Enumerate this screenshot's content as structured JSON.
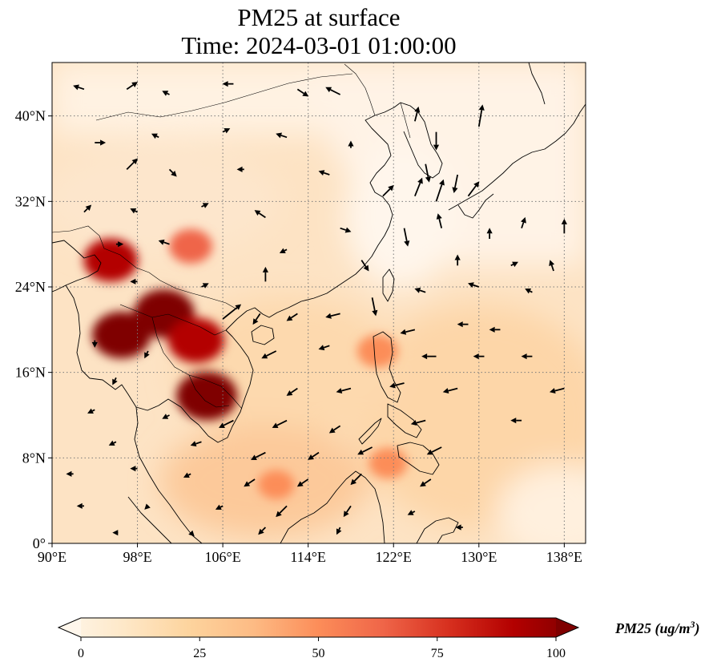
{
  "title": {
    "line1": "PM25 at surface",
    "line2": "Time: 2024-03-01 01:00:00"
  },
  "map": {
    "lon_range": [
      90,
      140
    ],
    "lat_range": [
      0,
      45
    ],
    "lon_ticks": [
      90,
      98,
      106,
      114,
      122,
      130,
      138
    ],
    "lon_tick_labels": [
      "90°E",
      "98°E",
      "106°E",
      "114°E",
      "122°E",
      "130°E",
      "138°E"
    ],
    "lat_ticks": [
      0,
      8,
      16,
      24,
      32,
      40
    ],
    "lat_tick_labels": [
      "0°",
      "8°N",
      "16°N",
      "24°N",
      "32°N",
      "40°N"
    ],
    "gridlines": true,
    "colormap": "OrRd",
    "hotspots": [
      {
        "lon": 95.5,
        "lat": 26.5,
        "value": 85
      },
      {
        "lon": 100.5,
        "lat": 21.5,
        "value": 100
      },
      {
        "lon": 96.5,
        "lat": 19.5,
        "value": 95
      },
      {
        "lon": 103.5,
        "lat": 19.0,
        "value": 90
      },
      {
        "lon": 104.5,
        "lat": 13.8,
        "value": 100
      },
      {
        "lon": 103.0,
        "lat": 27.8,
        "value": 60
      },
      {
        "lon": 120.5,
        "lat": 18.0,
        "value": 55
      },
      {
        "lon": 121.5,
        "lat": 7.5,
        "value": 50
      },
      {
        "lon": 111.0,
        "lat": 5.5,
        "value": 45
      }
    ],
    "wind_vectors": [
      {
        "lon": 93,
        "lat": 42.5,
        "u": -3,
        "v": 1
      },
      {
        "lon": 97,
        "lat": 42.5,
        "u": 3,
        "v": 2
      },
      {
        "lon": 101,
        "lat": 42,
        "u": -2,
        "v": 1
      },
      {
        "lon": 107,
        "lat": 43,
        "u": -3,
        "v": 0
      },
      {
        "lon": 113,
        "lat": 42.5,
        "u": 3,
        "v": -2
      },
      {
        "lon": 117,
        "lat": 42,
        "u": -4,
        "v": 2
      },
      {
        "lon": 124,
        "lat": 39.5,
        "u": 1,
        "v": 4
      },
      {
        "lon": 126,
        "lat": 38.5,
        "u": 0,
        "v": -5
      },
      {
        "lon": 130,
        "lat": 39,
        "u": 1,
        "v": 6
      },
      {
        "lon": 94,
        "lat": 37.5,
        "u": 3,
        "v": 0
      },
      {
        "lon": 100,
        "lat": 38,
        "u": -2,
        "v": 1
      },
      {
        "lon": 106,
        "lat": 38.5,
        "u": 2,
        "v": 1
      },
      {
        "lon": 112,
        "lat": 38,
        "u": -3,
        "v": 1
      },
      {
        "lon": 118,
        "lat": 37,
        "u": 0,
        "v": 2
      },
      {
        "lon": 125,
        "lat": 35.5,
        "u": 1,
        "v": -5
      },
      {
        "lon": 128,
        "lat": 34.5,
        "u": -1,
        "v": -5
      },
      {
        "lon": 97,
        "lat": 35,
        "u": 3,
        "v": 3
      },
      {
        "lon": 101,
        "lat": 35,
        "u": 2,
        "v": -2
      },
      {
        "lon": 108,
        "lat": 35,
        "u": -2,
        "v": 0
      },
      {
        "lon": 116,
        "lat": 34.5,
        "u": -3,
        "v": 1
      },
      {
        "lon": 121,
        "lat": 32.5,
        "u": 3,
        "v": 3
      },
      {
        "lon": 124,
        "lat": 32.5,
        "u": 2,
        "v": 5
      },
      {
        "lon": 126,
        "lat": 32,
        "u": 2,
        "v": 6
      },
      {
        "lon": 129,
        "lat": 32.5,
        "u": 3,
        "v": 4
      },
      {
        "lon": 93,
        "lat": 31,
        "u": 2,
        "v": 2
      },
      {
        "lon": 98,
        "lat": 31,
        "u": -2,
        "v": 1
      },
      {
        "lon": 104,
        "lat": 31.5,
        "u": 2,
        "v": 1
      },
      {
        "lon": 110,
        "lat": 30.5,
        "u": -3,
        "v": 2
      },
      {
        "lon": 117,
        "lat": 29.5,
        "u": 3,
        "v": -1
      },
      {
        "lon": 123,
        "lat": 29.5,
        "u": 1,
        "v": -5
      },
      {
        "lon": 126.5,
        "lat": 29.5,
        "u": -1,
        "v": 4
      },
      {
        "lon": 131,
        "lat": 28.5,
        "u": 0,
        "v": 3
      },
      {
        "lon": 134,
        "lat": 29.5,
        "u": 1,
        "v": 3
      },
      {
        "lon": 138,
        "lat": 29,
        "u": 0,
        "v": 4
      },
      {
        "lon": 96,
        "lat": 28,
        "u": 2,
        "v": 0
      },
      {
        "lon": 101,
        "lat": 28,
        "u": -3,
        "v": 1
      },
      {
        "lon": 112,
        "lat": 27.5,
        "u": -2,
        "v": -1
      },
      {
        "lon": 119,
        "lat": 26.5,
        "u": 2,
        "v": -3
      },
      {
        "lon": 128,
        "lat": 26,
        "u": 0,
        "v": 3
      },
      {
        "lon": 133,
        "lat": 26,
        "u": 2,
        "v": 1
      },
      {
        "lon": 137,
        "lat": 25.5,
        "u": -1,
        "v": 3
      },
      {
        "lon": 98,
        "lat": 24.5,
        "u": -2,
        "v": 0
      },
      {
        "lon": 104,
        "lat": 24,
        "u": 2,
        "v": 1
      },
      {
        "lon": 110,
        "lat": 24.5,
        "u": 0,
        "v": 4
      },
      {
        "lon": 120,
        "lat": 23,
        "u": 1,
        "v": -5
      },
      {
        "lon": 125,
        "lat": 23.5,
        "u": -3,
        "v": 1
      },
      {
        "lon": 130,
        "lat": 24,
        "u": -3,
        "v": 1
      },
      {
        "lon": 135,
        "lat": 23.5,
        "u": -2,
        "v": 1
      },
      {
        "lon": 106,
        "lat": 21,
        "u": 5,
        "v": 4
      },
      {
        "lon": 109.5,
        "lat": 21.5,
        "u": -2,
        "v": -3
      },
      {
        "lon": 113,
        "lat": 21.5,
        "u": -3,
        "v": -2
      },
      {
        "lon": 117,
        "lat": 21.5,
        "u": -4,
        "v": -1
      },
      {
        "lon": 124,
        "lat": 20,
        "u": -4,
        "v": -1
      },
      {
        "lon": 129,
        "lat": 20.5,
        "u": -3,
        "v": 0
      },
      {
        "lon": 132,
        "lat": 20,
        "u": -3,
        "v": 0
      },
      {
        "lon": 94,
        "lat": 19,
        "u": 0,
        "v": -2
      },
      {
        "lon": 99,
        "lat": 18,
        "u": -1,
        "v": -2
      },
      {
        "lon": 111,
        "lat": 18,
        "u": -4,
        "v": -2
      },
      {
        "lon": 116,
        "lat": 18.5,
        "u": -3,
        "v": -1
      },
      {
        "lon": 126,
        "lat": 17.5,
        "u": -4,
        "v": 0
      },
      {
        "lon": 130.5,
        "lat": 17.5,
        "u": -3,
        "v": 0
      },
      {
        "lon": 135,
        "lat": 17.5,
        "u": -3,
        "v": 0
      },
      {
        "lon": 96,
        "lat": 15.5,
        "u": -1,
        "v": -2
      },
      {
        "lon": 113,
        "lat": 14.5,
        "u": -3,
        "v": -2
      },
      {
        "lon": 118,
        "lat": 14.5,
        "u": -4,
        "v": -1
      },
      {
        "lon": 123,
        "lat": 15,
        "u": -4,
        "v": -1
      },
      {
        "lon": 128,
        "lat": 14.5,
        "u": -4,
        "v": -1
      },
      {
        "lon": 138,
        "lat": 14.5,
        "u": -4,
        "v": -1
      },
      {
        "lon": 94,
        "lat": 12.5,
        "u": -2,
        "v": -1
      },
      {
        "lon": 101,
        "lat": 12,
        "u": -2,
        "v": -1
      },
      {
        "lon": 107,
        "lat": 11.5,
        "u": -4,
        "v": -2
      },
      {
        "lon": 112,
        "lat": 11.5,
        "u": -4,
        "v": -2
      },
      {
        "lon": 117,
        "lat": 11,
        "u": -3,
        "v": -2
      },
      {
        "lon": 125,
        "lat": 11.5,
        "u": -4,
        "v": -1
      },
      {
        "lon": 134,
        "lat": 11.5,
        "u": -3,
        "v": 0
      },
      {
        "lon": 96,
        "lat": 9.5,
        "u": -2,
        "v": -1
      },
      {
        "lon": 104,
        "lat": 9.5,
        "u": -3,
        "v": -1
      },
      {
        "lon": 110,
        "lat": 8.5,
        "u": -4,
        "v": -2
      },
      {
        "lon": 115,
        "lat": 8.5,
        "u": -3,
        "v": -2
      },
      {
        "lon": 120,
        "lat": 9,
        "u": -4,
        "v": -2
      },
      {
        "lon": 126.5,
        "lat": 9,
        "u": -4,
        "v": -2
      },
      {
        "lon": 92,
        "lat": 6.5,
        "u": -2,
        "v": 0
      },
      {
        "lon": 98,
        "lat": 7,
        "u": -2,
        "v": 0
      },
      {
        "lon": 103,
        "lat": 6.5,
        "u": -2,
        "v": -1
      },
      {
        "lon": 109,
        "lat": 6,
        "u": -3,
        "v": -2
      },
      {
        "lon": 114,
        "lat": 6,
        "u": -3,
        "v": -2
      },
      {
        "lon": 119,
        "lat": 6.5,
        "u": -3,
        "v": -3
      },
      {
        "lon": 125.5,
        "lat": 6,
        "u": -3,
        "v": -2
      },
      {
        "lon": 93,
        "lat": 3.5,
        "u": -2,
        "v": 0
      },
      {
        "lon": 99,
        "lat": 3.5,
        "u": -1,
        "v": -1
      },
      {
        "lon": 106,
        "lat": 3.5,
        "u": -2,
        "v": -1
      },
      {
        "lon": 112,
        "lat": 3.5,
        "u": -3,
        "v": -3
      },
      {
        "lon": 118,
        "lat": 3.5,
        "u": -2,
        "v": -3
      },
      {
        "lon": 124,
        "lat": 3,
        "u": -2,
        "v": -1
      },
      {
        "lon": 96,
        "lat": 1,
        "u": -1,
        "v": 0
      },
      {
        "lon": 103,
        "lat": 1,
        "u": 1,
        "v": -1
      },
      {
        "lon": 110,
        "lat": 1.5,
        "u": -2,
        "v": -2
      },
      {
        "lon": 117,
        "lat": 1.5,
        "u": -1,
        "v": -2
      },
      {
        "lon": 128.5,
        "lat": 1.5,
        "u": -2,
        "v": 0
      }
    ]
  },
  "colorbar": {
    "ticks": [
      0,
      25,
      50,
      75,
      100
    ],
    "tick_labels": [
      "0",
      "25",
      "50",
      "75",
      "100"
    ],
    "range": [
      0,
      100
    ],
    "label": "PM25 (ug/m",
    "label_exp": "3",
    "label_close": ")"
  }
}
